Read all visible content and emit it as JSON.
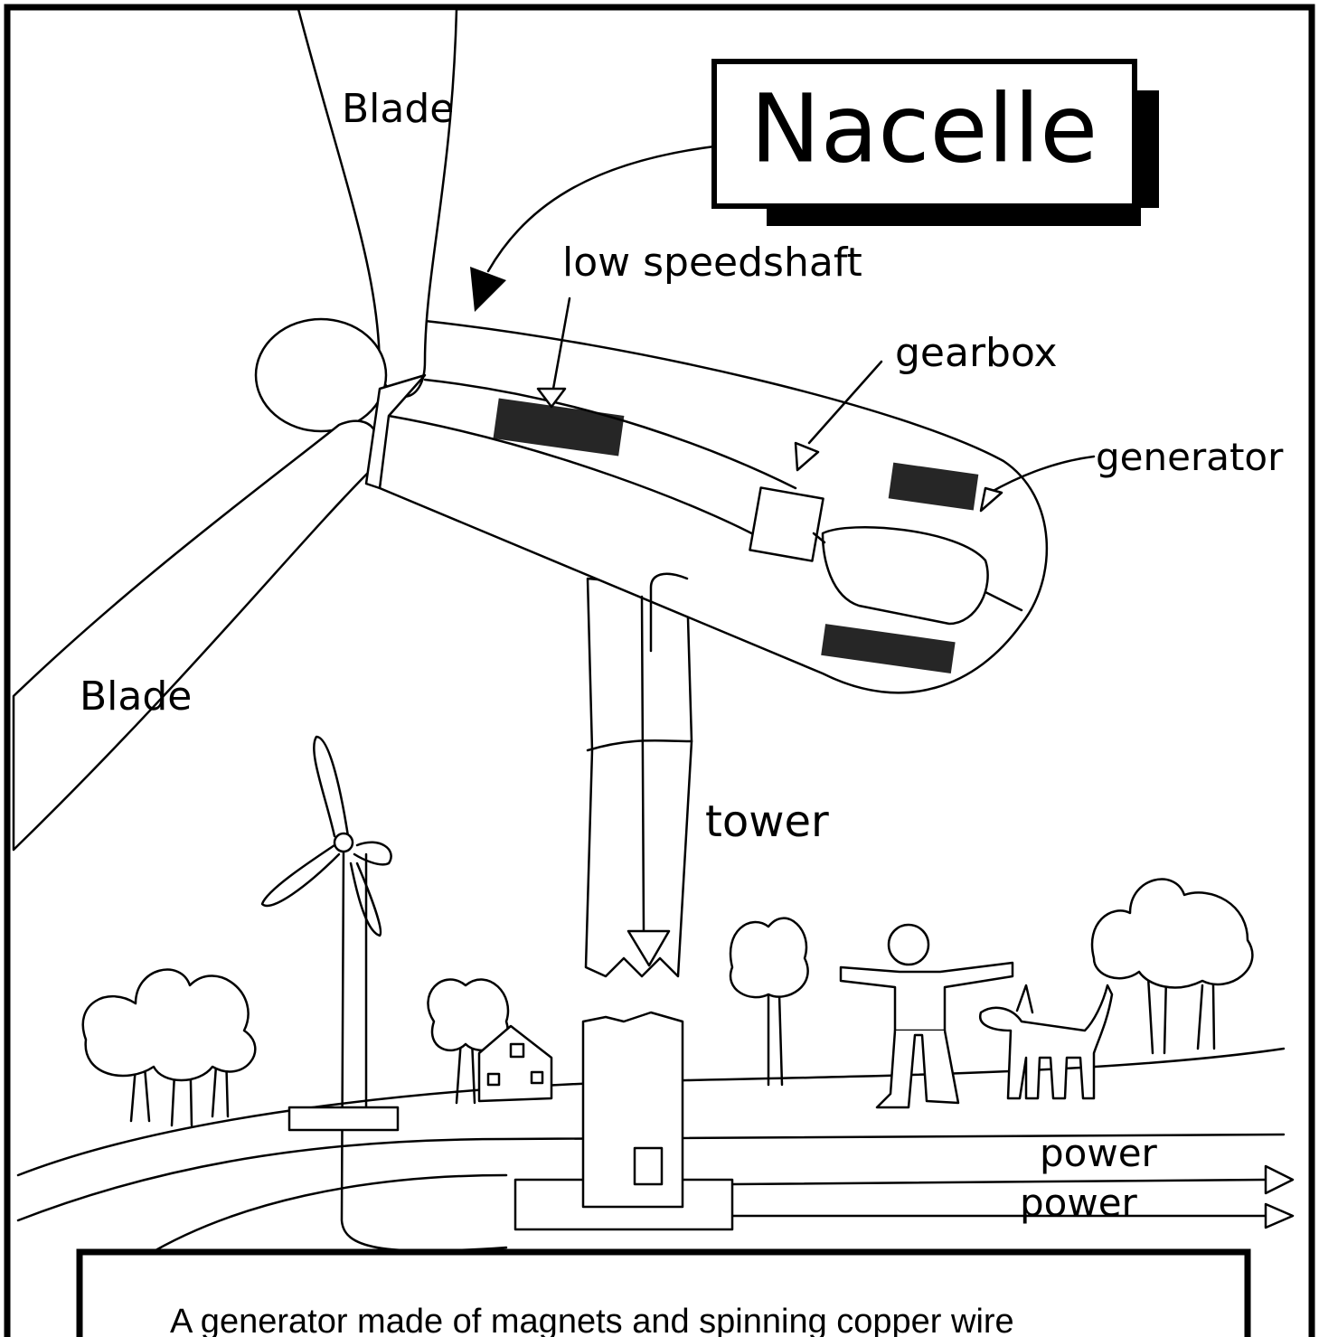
{
  "title": "Nacelle",
  "labels": [
    "Blade",
    "Blade",
    "low speedshaft",
    "gearbox",
    "generator",
    "tower",
    "power",
    "power"
  ],
  "caption": "A generator made of magnets and spinning copper wire"
}
